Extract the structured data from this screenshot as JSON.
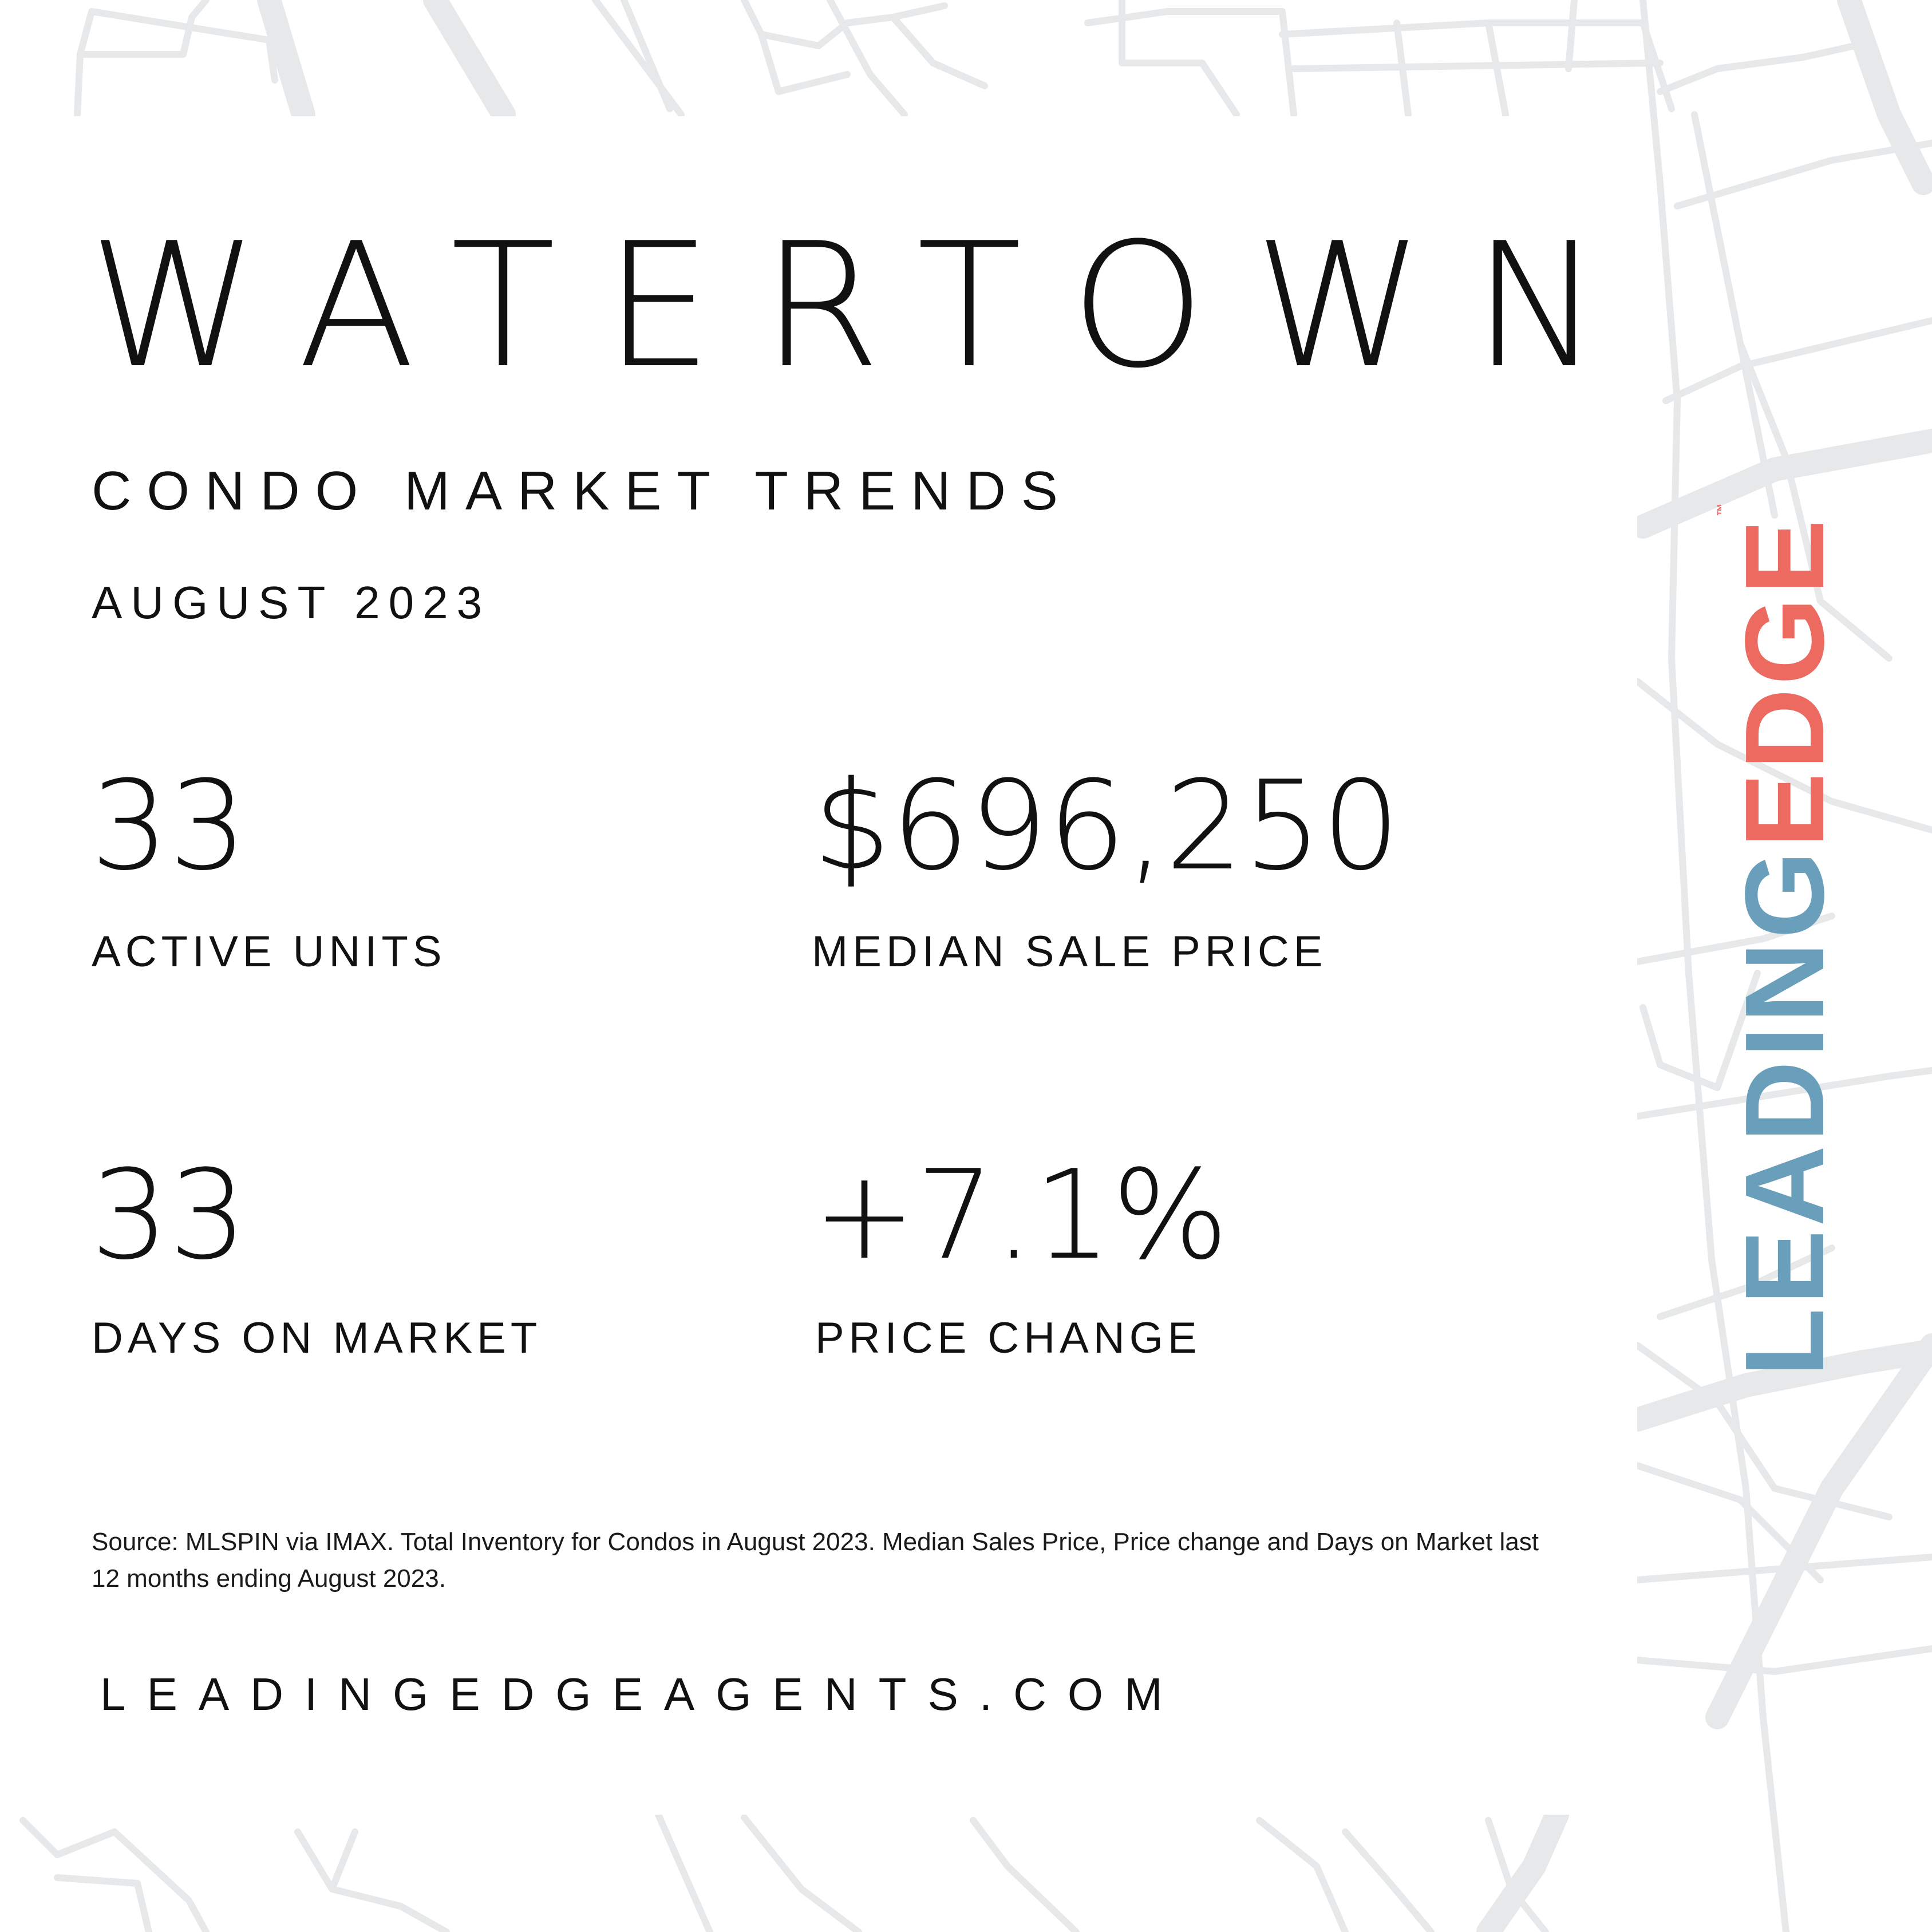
{
  "header": {
    "city": "WATERTOWN",
    "subtitle": "CONDO MARKET TRENDS",
    "period": "AUGUST 2023"
  },
  "stats": {
    "active_units": {
      "value": "33",
      "label": "ACTIVE UNITS"
    },
    "median_sale_price": {
      "value": "$696,250",
      "label": "MEDIAN SALE PRICE"
    },
    "days_on_market": {
      "value": "33",
      "label": "DAYS ON MARKET"
    },
    "price_change": {
      "value": "+7.1%",
      "label": "PRICE CHANGE"
    }
  },
  "footer": {
    "source": "Source: MLSPIN via IMAX. Total Inventory for Condos in August 2023. Median Sales Price, Price change and Days on Market last 12 months ending August 2023.",
    "website": "LEADINGEDGEAGENTS.COM"
  },
  "logo": {
    "part1": "LEADING",
    "part2": "EDGE",
    "trademark": "™",
    "color_leading": "#6a9fbb",
    "color_edge": "#ec6a60"
  },
  "colors": {
    "background": "#ffffff",
    "map_lines": "#e6e8ea",
    "text": "#111111"
  }
}
